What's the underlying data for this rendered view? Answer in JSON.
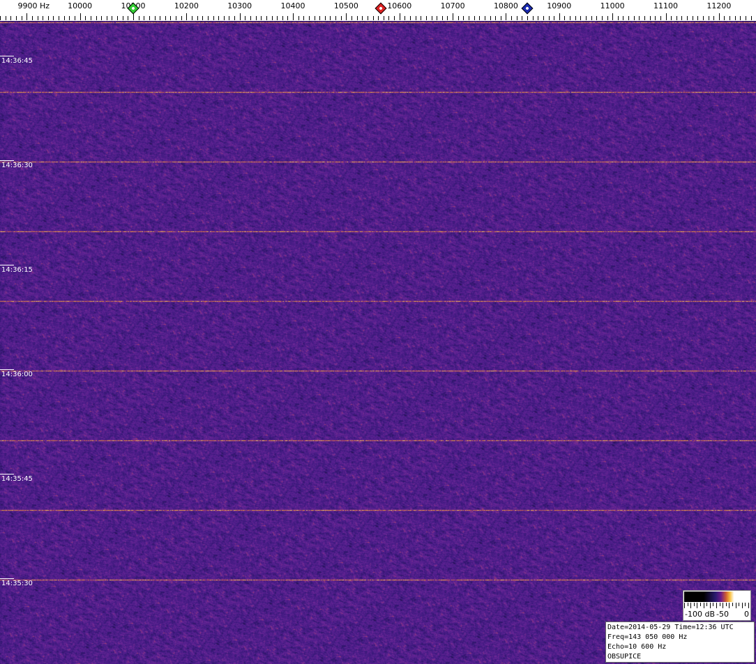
{
  "chart_data": {
    "type": "heatmap",
    "xlabel_unit": "Hz",
    "x_tick_labels": [
      "9900 Hz",
      "10000",
      "10100",
      "10200",
      "10300",
      "10400",
      "10500",
      "10600",
      "10700",
      "10800",
      "10900",
      "11000",
      "11100",
      "11200"
    ],
    "x_ticks": [
      9900,
      10000,
      10100,
      10200,
      10300,
      10400,
      10500,
      10600,
      10700,
      10800,
      10900,
      11000,
      11100,
      11200
    ],
    "xlim": [
      9850,
      11270
    ],
    "y_tick_labels": [
      "14:36:45",
      "14:36:30",
      "14:36:15",
      "14:36:00",
      "14:35:45",
      "14:35:30"
    ],
    "y_direction": "time decreasing downward",
    "markers": [
      {
        "freq": 10100,
        "color": "#33cc33"
      },
      {
        "freq": 10565,
        "color": "#dd2222"
      },
      {
        "freq": 10840,
        "color": "#1a2ab0"
      }
    ],
    "signal_traces_seconds_before_top_label": [
      -4.8,
      5.2,
      15.2,
      25.2,
      35.2,
      45.2,
      55.2,
      65.2,
      75.2
    ],
    "colorbar": {
      "labels": [
        "-100 dB",
        "-50",
        "0"
      ],
      "range_db": [
        -100,
        0
      ]
    },
    "palette": [
      "#000000",
      "#2a1a70",
      "#6a1a8a",
      "#d06030",
      "#f8c040",
      "#ffffff"
    ]
  },
  "info": {
    "line1": "Date=2014-05-29 Time=12:36 UTC",
    "line2": "Freq=143 050 000 Hz",
    "line3": "Echo=10 600 Hz",
    "line4": "OBSUPICE"
  }
}
